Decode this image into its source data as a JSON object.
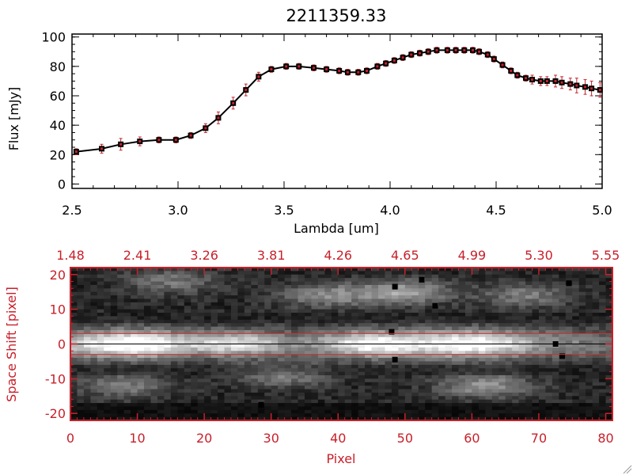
{
  "chart_data": [
    {
      "type": "line",
      "title": "2211359.33",
      "xlabel": "Lambda [um]",
      "ylabel": "Flux [mJy]",
      "xlim": [
        2.5,
        5.0
      ],
      "ylim": [
        -3,
        102
      ],
      "xticks": [
        2.5,
        3.0,
        3.5,
        4.0,
        4.5,
        5.0
      ],
      "xtick_labels": [
        "2.5",
        "3.0",
        "3.5",
        "4.0",
        "4.5",
        "5.0"
      ],
      "yticks": [
        0,
        20,
        40,
        60,
        80,
        100
      ],
      "ytick_labels": [
        "0",
        "20",
        "40",
        "60",
        "80",
        "100"
      ],
      "series": [
        {
          "name": "flux",
          "x": [
            2.52,
            2.64,
            2.73,
            2.82,
            2.91,
            2.99,
            3.06,
            3.13,
            3.19,
            3.26,
            3.32,
            3.38,
            3.44,
            3.51,
            3.57,
            3.64,
            3.7,
            3.76,
            3.8,
            3.85,
            3.89,
            3.94,
            3.98,
            4.02,
            4.06,
            4.1,
            4.14,
            4.18,
            4.22,
            4.27,
            4.31,
            4.35,
            4.39,
            4.42,
            4.46,
            4.49,
            4.53,
            4.57,
            4.6,
            4.64,
            4.67,
            4.71,
            4.74,
            4.78,
            4.81,
            4.85,
            4.88,
            4.92,
            4.95,
            4.99
          ],
          "y": [
            22,
            24,
            27,
            29,
            30,
            30,
            33,
            38,
            45,
            55,
            64,
            73,
            78,
            80,
            80,
            79,
            78,
            77,
            76,
            76,
            77,
            80,
            82,
            84,
            86,
            88,
            89,
            90,
            91,
            91,
            91,
            91,
            91,
            90,
            88,
            85,
            81,
            77,
            74,
            72,
            71,
            70,
            70,
            70,
            69,
            68,
            67,
            66,
            65,
            64
          ],
          "err": [
            2,
            3,
            4,
            3,
            2,
            2,
            2,
            3,
            4,
            4,
            4,
            3,
            2,
            2,
            2,
            2,
            2,
            2,
            2,
            2,
            2,
            2,
            2,
            2,
            2,
            2,
            2,
            2,
            2,
            2,
            2,
            2,
            2,
            2,
            2,
            2,
            2,
            2,
            2,
            2,
            3,
            3,
            3,
            4,
            4,
            4,
            5,
            5,
            5,
            5
          ]
        }
      ]
    },
    {
      "type": "heatmap",
      "xlabel": "Pixel",
      "ylabel": "Space Shift [pixel]",
      "xlim": [
        0,
        81
      ],
      "ylim": [
        -22,
        22
      ],
      "xticks": [
        0,
        10,
        20,
        30,
        40,
        50,
        60,
        70,
        80
      ],
      "xtick_labels": [
        "0",
        "10",
        "20",
        "30",
        "40",
        "50",
        "60",
        "70",
        "80"
      ],
      "yticks": [
        -20,
        -10,
        0,
        10,
        20
      ],
      "ytick_labels": [
        "-20",
        "-10",
        "0",
        "10",
        "20"
      ],
      "top_axis_labels": [
        "1.48",
        "2.41",
        "3.26",
        "3.81",
        "4.26",
        "4.65",
        "4.99",
        "5.30",
        "5.55"
      ],
      "trace_center": 0,
      "trace_window": [
        -3,
        3
      ],
      "bright_blobs": [
        {
          "x": 10,
          "y": 0,
          "intensity": 1.0
        },
        {
          "x": 25,
          "y": 0,
          "intensity": 0.85
        },
        {
          "x": 45,
          "y": 0,
          "intensity": 0.8
        },
        {
          "x": 60,
          "y": 0,
          "intensity": 0.7
        },
        {
          "x": 50,
          "y": 15,
          "intensity": 0.9
        },
        {
          "x": 68,
          "y": 14,
          "intensity": 0.6
        },
        {
          "x": 38,
          "y": 14,
          "intensity": 0.7
        },
        {
          "x": 15,
          "y": 18,
          "intensity": 0.55
        },
        {
          "x": 62,
          "y": -12,
          "intensity": 0.8
        },
        {
          "x": 8,
          "y": -12,
          "intensity": 0.6
        },
        {
          "x": 32,
          "y": -9,
          "intensity": 0.6
        }
      ],
      "dark_points": [
        {
          "x": 48.5,
          "y": 16.5
        },
        {
          "x": 52.5,
          "y": 18.5
        },
        {
          "x": 74.5,
          "y": 17.5
        },
        {
          "x": 54.5,
          "y": 11
        },
        {
          "x": 48,
          "y": 3.5
        },
        {
          "x": 72.5,
          "y": 0
        },
        {
          "x": 48.5,
          "y": -4.5
        },
        {
          "x": 73.5,
          "y": -3.5
        },
        {
          "x": 28.5,
          "y": -17.5
        }
      ],
      "colors": {
        "accent": "#c8202a",
        "line": "#000000",
        "trace": "#d23030"
      }
    }
  ]
}
